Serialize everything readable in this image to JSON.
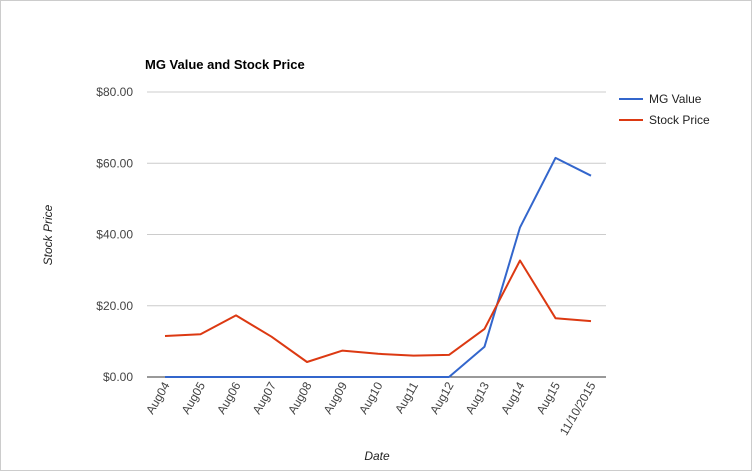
{
  "chart_data": {
    "type": "line",
    "title": "MG Value and Stock Price",
    "xlabel": "Date",
    "ylabel": "Stock Price",
    "categories": [
      "Aug04",
      "Aug05",
      "Aug06",
      "Aug07",
      "Aug08",
      "Aug09",
      "Aug10",
      "Aug11",
      "Aug12",
      "Aug13",
      "Aug14",
      "Aug15",
      "11/10/2015"
    ],
    "ylim": [
      0,
      80
    ],
    "yticks": [
      "$0.00",
      "$20.00",
      "$40.00",
      "$60.00",
      "$80.00"
    ],
    "grid": true,
    "legend_position": "right",
    "series": [
      {
        "name": "MG Value",
        "color": "#3366cc",
        "values": [
          0,
          0,
          0,
          0,
          0,
          0,
          0,
          0,
          0,
          8.5,
          42,
          61.5,
          56.5
        ]
      },
      {
        "name": "Stock Price",
        "color": "#dc3912",
        "values": [
          11.5,
          12,
          17.3,
          11.3,
          4.2,
          7.4,
          6.5,
          6,
          6.2,
          13.5,
          32.7,
          16.5,
          15.7
        ]
      }
    ]
  }
}
